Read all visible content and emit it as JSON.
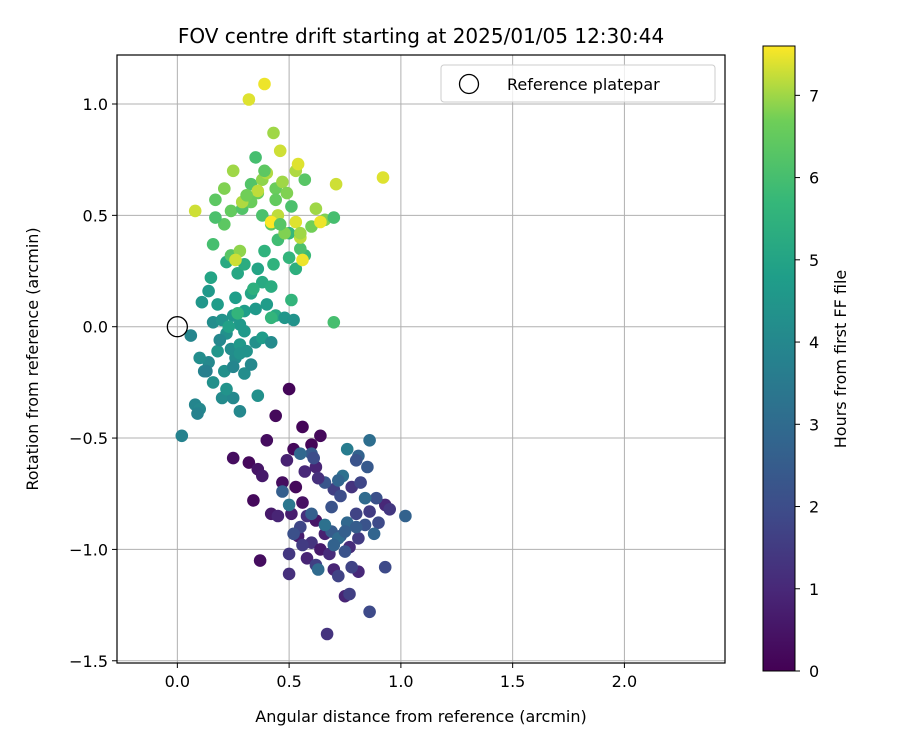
{
  "chart_data": {
    "type": "scatter",
    "title": "FOV centre drift starting at 2025/01/05 12:30:44",
    "xlabel": "Angular distance from reference (arcmin)",
    "ylabel": "Rotation from reference (arcmin)",
    "xlim": [
      -0.27,
      2.45
    ],
    "ylim": [
      -1.51,
      1.22
    ],
    "xticks": [
      0.0,
      0.5,
      1.0,
      1.5,
      2.0
    ],
    "xtick_labels": [
      "0.0",
      "0.5",
      "1.0",
      "1.5",
      "2.0"
    ],
    "yticks": [
      -1.5,
      -1.0,
      -0.5,
      0.0,
      0.5,
      1.0
    ],
    "ytick_labels": [
      "−1.5",
      "−1.0",
      "−0.5",
      "0.0",
      "0.5",
      "1.0"
    ],
    "grid": true,
    "legend": {
      "label": "Reference platepar",
      "placement": "top-right",
      "marker": "open circle"
    },
    "reference_point": {
      "x": 0.0,
      "y": 0.0
    },
    "colorbar": {
      "label": "Hours from first FF file",
      "colormap": "viridis",
      "range": [
        0,
        7.6
      ],
      "ticks": [
        0,
        1,
        2,
        3,
        4,
        5,
        6,
        7
      ],
      "tick_labels": [
        "0",
        "1",
        "2",
        "3",
        "4",
        "5",
        "6",
        "7"
      ]
    },
    "points": [
      [
        0.5,
        -0.28,
        0.1
      ],
      [
        0.44,
        -0.4,
        0.2
      ],
      [
        0.56,
        -0.45,
        0.1
      ],
      [
        0.64,
        -0.49,
        0.2
      ],
      [
        0.4,
        -0.51,
        0.3
      ],
      [
        0.52,
        -0.55,
        0.2
      ],
      [
        0.6,
        -0.53,
        0.1
      ],
      [
        0.25,
        -0.59,
        0.3
      ],
      [
        0.32,
        -0.61,
        0.2
      ],
      [
        0.36,
        -0.64,
        0.5
      ],
      [
        0.38,
        -0.67,
        0.6
      ],
      [
        0.49,
        -0.6,
        0.8
      ],
      [
        0.57,
        -0.65,
        1.0
      ],
      [
        0.62,
        -0.63,
        0.9
      ],
      [
        0.47,
        -0.7,
        0.3
      ],
      [
        0.53,
        -0.72,
        0.2
      ],
      [
        0.56,
        -0.79,
        0.4
      ],
      [
        0.34,
        -0.78,
        0.2
      ],
      [
        0.42,
        -0.84,
        0.6
      ],
      [
        0.45,
        -0.85,
        0.9
      ],
      [
        0.51,
        -0.84,
        0.7
      ],
      [
        0.58,
        -0.85,
        1.2
      ],
      [
        0.62,
        -0.87,
        0.5
      ],
      [
        0.66,
        -0.93,
        0.8
      ],
      [
        0.54,
        -0.94,
        0.7
      ],
      [
        0.6,
        -0.97,
        1.3
      ],
      [
        0.64,
        -1.0,
        0.6
      ],
      [
        0.68,
        -1.02,
        1.1
      ],
      [
        0.5,
        -1.02,
        1.4
      ],
      [
        0.58,
        -1.04,
        0.9
      ],
      [
        0.62,
        -1.07,
        1.6
      ],
      [
        0.7,
        -1.09,
        0.9
      ],
      [
        0.72,
        -1.12,
        1.7
      ],
      [
        0.5,
        -1.11,
        1.2
      ],
      [
        0.67,
        -1.38,
        1.3
      ],
      [
        0.75,
        -1.21,
        0.9
      ],
      [
        0.77,
        -1.2,
        1.6
      ],
      [
        0.86,
        -1.28,
        1.9
      ],
      [
        0.37,
        -1.05,
        0.3
      ],
      [
        0.7,
        -0.73,
        1.6
      ],
      [
        0.73,
        -0.76,
        2.0
      ],
      [
        0.78,
        -0.72,
        1.3
      ],
      [
        0.8,
        -0.84,
        1.7
      ],
      [
        0.84,
        -0.89,
        2.2
      ],
      [
        0.86,
        -0.83,
        1.5
      ],
      [
        0.9,
        -0.88,
        1.9
      ],
      [
        0.93,
        -0.8,
        1.0
      ],
      [
        0.81,
        -0.95,
        1.5
      ],
      [
        0.77,
        -0.99,
        1.1
      ],
      [
        0.73,
        -0.94,
        2.4
      ],
      [
        0.69,
        -0.92,
        2.5
      ],
      [
        0.74,
        -0.67,
        3.2
      ],
      [
        0.76,
        -0.55,
        3.6
      ],
      [
        0.81,
        -0.58,
        2.7
      ],
      [
        0.86,
        -0.51,
        3.1
      ],
      [
        0.8,
        -0.6,
        2.2
      ],
      [
        0.85,
        -0.63,
        2.4
      ],
      [
        0.72,
        -0.69,
        2.8
      ],
      [
        0.66,
        -0.7,
        2.3
      ],
      [
        0.82,
        -0.7,
        1.8
      ],
      [
        0.89,
        -0.77,
        2.1
      ],
      [
        0.95,
        -0.82,
        1.4
      ],
      [
        1.02,
        -0.85,
        2.7
      ],
      [
        0.93,
        -1.08,
        1.9
      ],
      [
        0.81,
        -1.1,
        1.0
      ],
      [
        0.78,
        -1.08,
        1.7
      ],
      [
        0.72,
        -0.95,
        3.0
      ],
      [
        0.66,
        -0.89,
        3.2
      ],
      [
        0.6,
        -0.84,
        2.6
      ],
      [
        0.55,
        -0.9,
        1.8
      ],
      [
        0.52,
        -0.93,
        2.1
      ],
      [
        0.56,
        -0.98,
        1.5
      ],
      [
        0.6,
        -0.57,
        2.4
      ],
      [
        0.55,
        -0.57,
        2.9
      ],
      [
        0.61,
        -0.59,
        2.0
      ],
      [
        0.5,
        -0.8,
        3.4
      ],
      [
        0.47,
        -0.74,
        2.6
      ],
      [
        0.63,
        -0.68,
        1.2
      ],
      [
        0.69,
        -0.81,
        2.2
      ],
      [
        0.76,
        -0.88,
        2.9
      ],
      [
        0.8,
        -0.9,
        2.5
      ],
      [
        0.75,
        -0.92,
        2.6
      ],
      [
        0.88,
        -0.93,
        2.8
      ],
      [
        0.84,
        -0.77,
        3.0
      ],
      [
        0.7,
        -0.98,
        2.7
      ],
      [
        0.75,
        -1.01,
        2.2
      ],
      [
        0.63,
        -1.09,
        3.0
      ],
      [
        0.02,
        -0.49,
        3.8
      ],
      [
        0.08,
        -0.35,
        3.9
      ],
      [
        0.1,
        -0.37,
        4.0
      ],
      [
        0.09,
        -0.39,
        3.8
      ],
      [
        0.12,
        -0.2,
        3.8
      ],
      [
        0.14,
        -0.16,
        4.0
      ],
      [
        0.1,
        -0.14,
        4.2
      ],
      [
        0.16,
        -0.25,
        4.3
      ],
      [
        0.2,
        -0.32,
        4.1
      ],
      [
        0.25,
        -0.32,
        4.0
      ],
      [
        0.22,
        -0.28,
        4.4
      ],
      [
        0.28,
        -0.38,
        4.0
      ],
      [
        0.36,
        -0.31,
        4.3
      ],
      [
        0.3,
        -0.21,
        4.2
      ],
      [
        0.33,
        -0.17,
        4.0
      ],
      [
        0.26,
        -0.14,
        4.1
      ],
      [
        0.21,
        -0.2,
        4.3
      ],
      [
        0.18,
        -0.11,
        4.5
      ],
      [
        0.24,
        -0.1,
        4.2
      ],
      [
        0.28,
        -0.08,
        4.6
      ],
      [
        0.31,
        -0.11,
        4.4
      ],
      [
        0.35,
        -0.07,
        4.3
      ],
      [
        0.38,
        -0.05,
        4.7
      ],
      [
        0.42,
        -0.07,
        4.1
      ],
      [
        0.06,
        -0.04,
        3.9
      ],
      [
        0.16,
        0.02,
        4.2
      ],
      [
        0.2,
        0.03,
        4.4
      ],
      [
        0.25,
        0.05,
        4.5
      ],
      [
        0.28,
        0.01,
        4.6
      ],
      [
        0.22,
        -0.03,
        4.3
      ],
      [
        0.3,
        0.07,
        4.8
      ],
      [
        0.35,
        0.08,
        4.6
      ],
      [
        0.4,
        0.1,
        4.7
      ],
      [
        0.44,
        0.05,
        5.2
      ],
      [
        0.48,
        0.04,
        4.5
      ],
      [
        0.52,
        0.03,
        4.4
      ],
      [
        0.11,
        0.11,
        4.5
      ],
      [
        0.14,
        0.16,
        4.6
      ],
      [
        0.18,
        0.1,
        4.7
      ],
      [
        0.26,
        0.13,
        4.8
      ],
      [
        0.33,
        0.15,
        5.0
      ],
      [
        0.38,
        0.2,
        5.2
      ],
      [
        0.42,
        0.18,
        5.3
      ],
      [
        0.15,
        0.22,
        5.0
      ],
      [
        0.22,
        0.29,
        5.2
      ],
      [
        0.27,
        0.24,
        5.1
      ],
      [
        0.3,
        0.28,
        5.3
      ],
      [
        0.36,
        0.26,
        5.0
      ],
      [
        0.43,
        0.28,
        5.5
      ],
      [
        0.5,
        0.31,
        5.6
      ],
      [
        0.53,
        0.26,
        5.4
      ],
      [
        0.57,
        0.32,
        5.8
      ],
      [
        0.51,
        0.12,
        5.6
      ],
      [
        0.7,
        0.02,
        6.0
      ],
      [
        0.39,
        0.34,
        5.5
      ],
      [
        0.45,
        0.39,
        5.9
      ],
      [
        0.5,
        0.42,
        5.7
      ],
      [
        0.55,
        0.35,
        6.1
      ],
      [
        0.24,
        0.32,
        6.3
      ],
      [
        0.28,
        0.34,
        6.9
      ],
      [
        0.16,
        0.37,
        6.0
      ],
      [
        0.21,
        0.46,
        6.4
      ],
      [
        0.17,
        0.49,
        6.1
      ],
      [
        0.24,
        0.52,
        6.5
      ],
      [
        0.29,
        0.53,
        6.2
      ],
      [
        0.33,
        0.56,
        6.6
      ],
      [
        0.38,
        0.5,
        6.1
      ],
      [
        0.42,
        0.46,
        6.4
      ],
      [
        0.48,
        0.42,
        6.8
      ],
      [
        0.55,
        0.4,
        7.2
      ],
      [
        0.6,
        0.45,
        6.7
      ],
      [
        0.62,
        0.53,
        7.0
      ],
      [
        0.66,
        0.48,
        6.8
      ],
      [
        0.7,
        0.49,
        6.0
      ],
      [
        0.71,
        0.64,
        7.3
      ],
      [
        0.92,
        0.67,
        7.4
      ],
      [
        0.08,
        0.52,
        7.3
      ],
      [
        0.17,
        0.57,
        6.4
      ],
      [
        0.21,
        0.62,
        6.8
      ],
      [
        0.25,
        0.7,
        7.0
      ],
      [
        0.33,
        0.64,
        6.2
      ],
      [
        0.36,
        0.6,
        6.6
      ],
      [
        0.38,
        0.66,
        6.9
      ],
      [
        0.4,
        0.69,
        7.1
      ],
      [
        0.44,
        0.62,
        6.6
      ],
      [
        0.47,
        0.65,
        7.0
      ],
      [
        0.49,
        0.6,
        6.8
      ],
      [
        0.53,
        0.7,
        7.1
      ],
      [
        0.54,
        0.73,
        7.4
      ],
      [
        0.57,
        0.66,
        6.3
      ],
      [
        0.51,
        0.54,
        6.1
      ],
      [
        0.44,
        0.57,
        6.5
      ],
      [
        0.35,
        0.76,
        6.0
      ],
      [
        0.39,
        0.7,
        6.4
      ],
      [
        0.46,
        0.79,
        7.3
      ],
      [
        0.43,
        0.87,
        7.0
      ],
      [
        0.32,
        1.02,
        7.4
      ],
      [
        0.39,
        1.09,
        7.5
      ],
      [
        0.45,
        0.5,
        7.2
      ],
      [
        0.42,
        0.47,
        7.6
      ],
      [
        0.29,
        0.56,
        7.1
      ],
      [
        0.26,
        0.3,
        7.3
      ],
      [
        0.56,
        0.3,
        7.5
      ],
      [
        0.64,
        0.47,
        7.5
      ],
      [
        0.53,
        0.47,
        7.4
      ],
      [
        0.55,
        0.42,
        7.0
      ],
      [
        0.36,
        0.61,
        7.2
      ],
      [
        0.31,
        0.59,
        6.7
      ],
      [
        0.46,
        0.46,
        6.3
      ],
      [
        0.34,
        0.17,
        5.4
      ],
      [
        0.27,
        0.06,
        5.6
      ],
      [
        0.3,
        -0.02,
        4.6
      ],
      [
        0.23,
        0.0,
        4.9
      ],
      [
        0.19,
        -0.06,
        4.0
      ],
      [
        0.25,
        -0.18,
        3.9
      ],
      [
        0.28,
        -0.12,
        4.4
      ],
      [
        0.13,
        -0.2,
        3.7
      ],
      [
        0.42,
        0.04,
        5.6
      ]
    ]
  }
}
